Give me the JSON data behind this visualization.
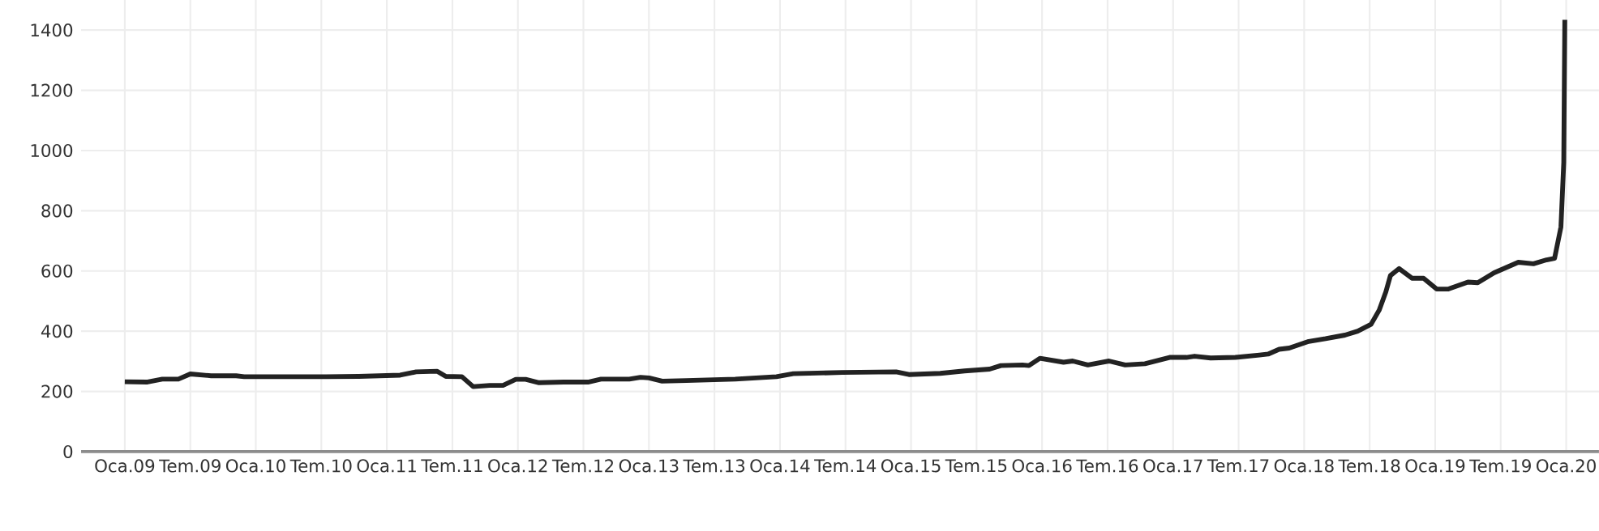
{
  "chart_data": {
    "type": "line",
    "x": [
      "2009-01-01",
      "2009-03-01",
      "2009-04-14",
      "2009-05-29",
      "2009-07-01",
      "2009-08-29",
      "2009-11-07",
      "2009-11-29",
      "2010-07-14",
      "2010-10-14",
      "2011-02-07",
      "2011-03-22",
      "2011-05-20",
      "2011-06-13",
      "2011-07-28",
      "2011-08-29",
      "2011-10-14",
      "2011-11-20",
      "2011-12-26",
      "2012-01-23",
      "2012-02-28",
      "2012-05-07",
      "2012-07-14",
      "2012-08-20",
      "2012-11-07",
      "2012-12-08",
      "2013-01-01",
      "2013-02-07",
      "2013-04-14",
      "2013-08-29",
      "2013-12-22",
      "2014-02-07",
      "2014-06-22",
      "2014-11-20",
      "2014-12-26",
      "2015-03-22",
      "2015-05-29",
      "2015-08-07",
      "2015-09-08",
      "2015-11-07",
      "2015-11-25",
      "2015-12-26",
      "2016-02-29",
      "2016-03-26",
      "2016-05-07",
      "2016-07-05",
      "2016-08-20",
      "2016-10-14",
      "2016-12-22",
      "2017-02-07",
      "2017-02-28",
      "2017-04-14",
      "2017-06-22",
      "2017-08-29",
      "2017-09-22",
      "2017-10-23",
      "2017-11-20",
      "2018-01-14",
      "2018-02-28",
      "2018-04-23",
      "2018-05-29",
      "2018-07-05",
      "2018-07-28",
      "2018-08-16",
      "2018-08-29",
      "2018-09-22",
      "2018-10-28",
      "2018-11-29",
      "2019-01-05",
      "2019-02-07",
      "2019-04-01",
      "2019-04-28",
      "2019-06-13",
      "2019-08-20",
      "2019-10-01",
      "2019-11-07",
      "2019-11-29",
      "2019-12-17",
      "2019-12-25",
      "2019-12-28"
    ],
    "series": [
      {
        "color": "#222222",
        "values": [
          232,
          231,
          241,
          241,
          258,
          252,
          252,
          249,
          249,
          250,
          254,
          265,
          267,
          250,
          249,
          216,
          220,
          220,
          240,
          240,
          229,
          231,
          231,
          241,
          241,
          247,
          245,
          234,
          236,
          241,
          249,
          259,
          263,
          265,
          256,
          260,
          268,
          274,
          286,
          288,
          286,
          310,
          297,
          301,
          288,
          301,
          288,
          292,
          313,
          313,
          317,
          311,
          313,
          321,
          324,
          340,
          344,
          366,
          375,
          387,
          400,
          423,
          470,
          531,
          585,
          608,
          576,
          576,
          540,
          540,
          563,
          561,
          594,
          629,
          624,
          637,
          642,
          746,
          960,
          1434
        ]
      }
    ],
    "xlim": [
      "2008-09-01",
      "2020-04-01"
    ],
    "xticks": [
      {
        "value": "2009-01-01",
        "label": "Oca.09"
      },
      {
        "value": "2009-07-01",
        "label": "Tem.09"
      },
      {
        "value": "2010-01-01",
        "label": "Oca.10"
      },
      {
        "value": "2010-07-01",
        "label": "Tem.10"
      },
      {
        "value": "2011-01-01",
        "label": "Oca.11"
      },
      {
        "value": "2011-07-01",
        "label": "Tem.11"
      },
      {
        "value": "2012-01-01",
        "label": "Oca.12"
      },
      {
        "value": "2012-07-01",
        "label": "Tem.12"
      },
      {
        "value": "2013-01-01",
        "label": "Oca.13"
      },
      {
        "value": "2013-07-01",
        "label": "Tem.13"
      },
      {
        "value": "2014-01-01",
        "label": "Oca.14"
      },
      {
        "value": "2014-07-01",
        "label": "Tem.14"
      },
      {
        "value": "2015-01-01",
        "label": "Oca.15"
      },
      {
        "value": "2015-07-01",
        "label": "Tem.15"
      },
      {
        "value": "2016-01-01",
        "label": "Oca.16"
      },
      {
        "value": "2016-07-01",
        "label": "Tem.16"
      },
      {
        "value": "2017-01-01",
        "label": "Oca.17"
      },
      {
        "value": "2017-07-01",
        "label": "Tem.17"
      },
      {
        "value": "2018-01-01",
        "label": "Oca.18"
      },
      {
        "value": "2018-07-01",
        "label": "Tem.18"
      },
      {
        "value": "2019-01-01",
        "label": "Oca.19"
      },
      {
        "value": "2019-07-01",
        "label": "Tem.19"
      },
      {
        "value": "2020-01-01",
        "label": "Oca.20"
      }
    ],
    "ylim": [
      0,
      1500
    ],
    "yticks": [
      0,
      200,
      400,
      600,
      800,
      1000,
      1200,
      1400
    ],
    "grid": true,
    "marker": "none",
    "line_style": "solid"
  }
}
